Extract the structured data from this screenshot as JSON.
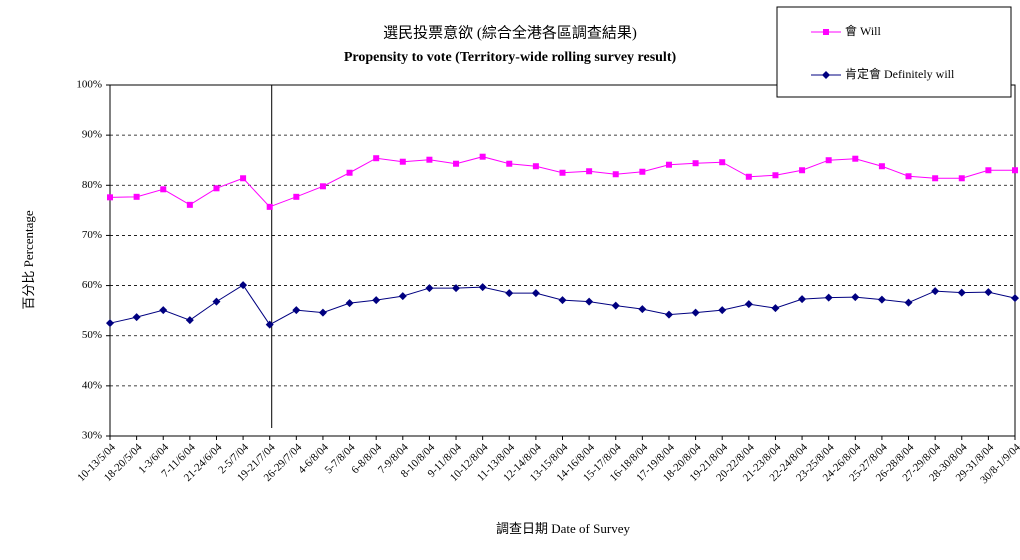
{
  "chart_data": {
    "type": "line",
    "title": "選民投票意欲 (綜合全港各區調查結果)",
    "subtitle": "Propensity to vote (Territory-wide rolling survey result)",
    "x_label": "調查日期 Date of Survey",
    "y_label": "百分比 Percentage",
    "categories": [
      "10-13/5/04",
      "18-20/5/04",
      "1-3/6/04",
      "7-11/6/04",
      "21-24/6/04",
      "2-5/7/04",
      "19-21/7/04",
      "26-29/7/04",
      "4-6/8/04",
      "5-7/8/04",
      "6-8/8/04",
      "7-9/8/04",
      "8-10/8/04",
      "9-11/8/04",
      "10-12/8/04",
      "11-13/8/04",
      "12-14/8/04",
      "13-15/8/04",
      "14-16/8/04",
      "15-17/8/04",
      "16-18/8/04",
      "17-19/8/04",
      "18-20/8/04",
      "19-21/8/04",
      "20-22/8/04",
      "21-23/8/04",
      "22-24/8/04",
      "23-25/8/04",
      "24-26/8/04",
      "25-27/8/04",
      "26-28/8/04",
      "27-29/8/04",
      "28-30/8/04",
      "29-31/8/04",
      "30/8-1/9/04"
    ],
    "series": [
      {
        "name": "會 Will",
        "color": "#ff00ff",
        "marker": "square",
        "values": [
          77.6,
          77.7,
          79.2,
          76.1,
          79.4,
          81.4,
          75.7,
          77.7,
          79.8,
          82.5,
          85.4,
          84.7,
          85.1,
          84.3,
          85.7,
          84.3,
          83.8,
          82.5,
          82.8,
          82.2,
          82.7,
          84.1,
          84.4,
          84.6,
          81.7,
          82.0,
          83.0,
          85.0,
          85.3,
          83.8,
          81.8,
          81.4,
          81.4,
          83.0,
          83.0
        ]
      },
      {
        "name": "肯定會 Definitely will",
        "color": "#000080",
        "marker": "diamond",
        "values": [
          52.5,
          53.7,
          55.1,
          53.1,
          56.8,
          60.1,
          52.2,
          55.1,
          54.6,
          56.5,
          57.1,
          57.9,
          59.5,
          59.5,
          59.7,
          58.5,
          58.5,
          57.1,
          56.8,
          56.0,
          55.3,
          54.2,
          54.6,
          55.1,
          56.3,
          55.5,
          57.3,
          57.6,
          57.7,
          57.2,
          56.6,
          58.9,
          58.6,
          58.7,
          57.5
        ]
      }
    ],
    "ylim": [
      30,
      100
    ],
    "yticks": [
      {
        "value": 30,
        "label": "30%"
      },
      {
        "value": 40,
        "label": "40%"
      },
      {
        "value": 50,
        "label": "50%"
      },
      {
        "value": 60,
        "label": "60%"
      },
      {
        "value": 70,
        "label": "70%"
      },
      {
        "value": 80,
        "label": "80%"
      },
      {
        "value": 90,
        "label": "90%"
      },
      {
        "value": 100,
        "label": "100%"
      }
    ],
    "grid": true,
    "legend": "top-right"
  }
}
